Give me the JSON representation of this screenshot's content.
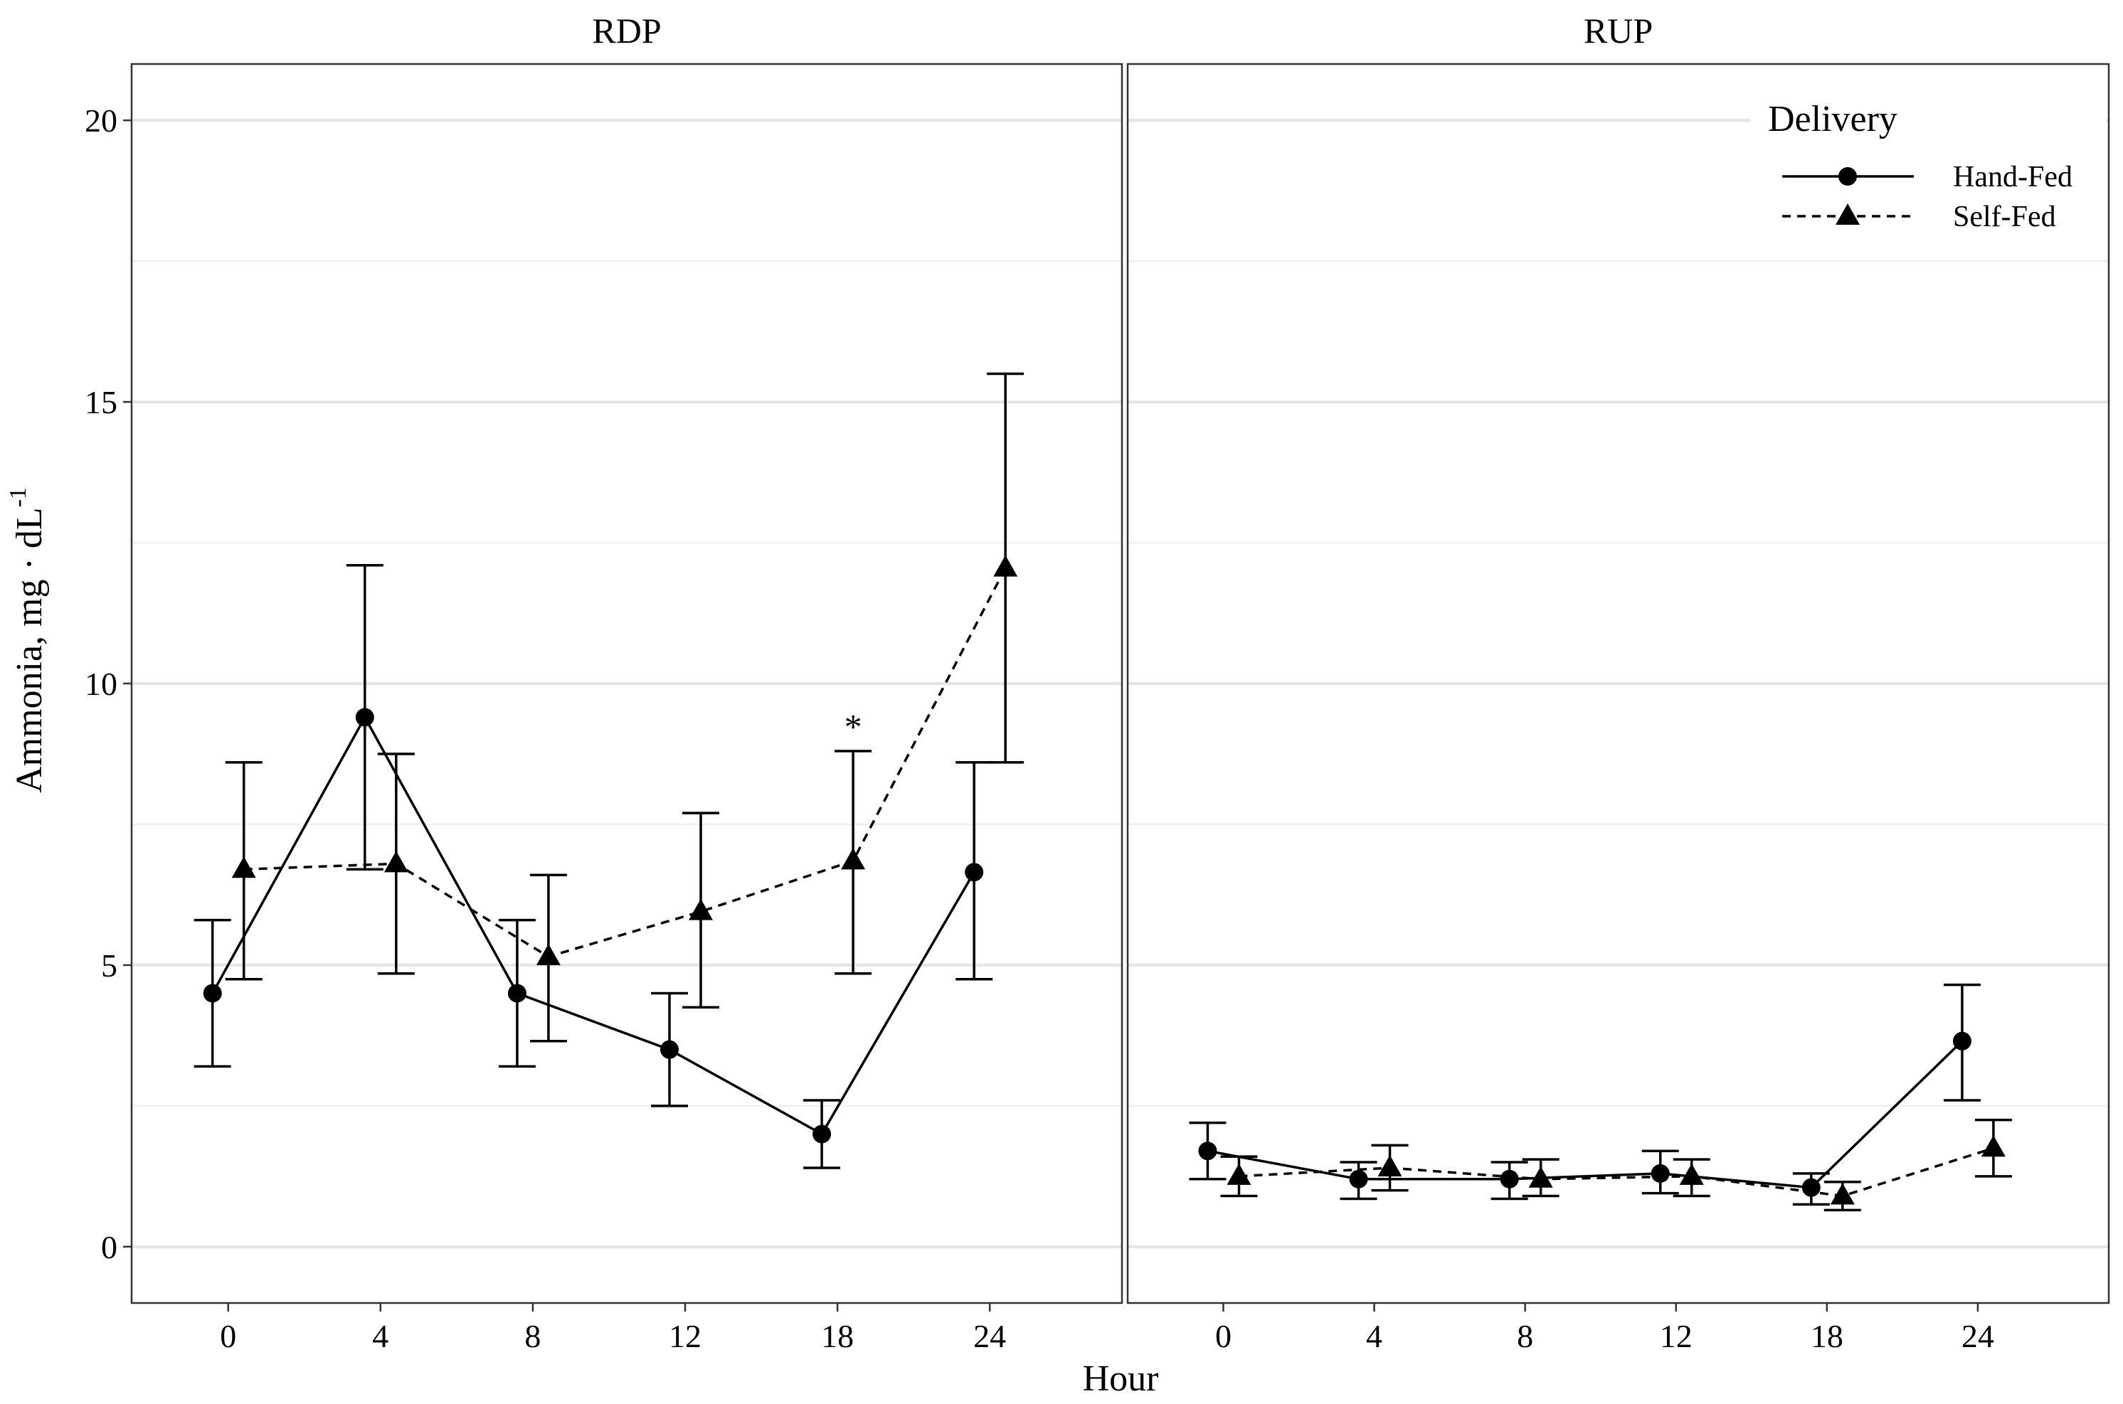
{
  "chart_data": {
    "type": "line",
    "facet_variable": "protein source",
    "xlabel": "Hour",
    "ylabel": "Ammonia, mg · dL",
    "ylabel_superscript": "-1",
    "categories": [
      "0",
      "4",
      "8",
      "12",
      "18",
      "24"
    ],
    "yticks": [
      "0",
      "5",
      "10",
      "15",
      "20"
    ],
    "ylim": [
      -1,
      21
    ],
    "legend": {
      "title": "Delivery",
      "position": "top-right",
      "entries": [
        {
          "name": "Hand-Fed",
          "marker": "circle",
          "line": "solid"
        },
        {
          "name": "Self-Fed",
          "marker": "triangle",
          "line": "dashed"
        }
      ]
    },
    "panels": [
      {
        "title": "RDP",
        "series": [
          {
            "name": "Hand-Fed",
            "values": [
              4.5,
              9.4,
              4.5,
              3.5,
              2.0,
              6.65
            ],
            "lower": [
              3.2,
              6.7,
              3.2,
              2.5,
              1.4,
              4.75
            ],
            "upper": [
              5.8,
              12.1,
              5.8,
              4.5,
              2.6,
              8.6
            ]
          },
          {
            "name": "Self-Fed",
            "values": [
              6.7,
              6.8,
              5.15,
              5.95,
              6.85,
              12.05
            ],
            "lower": [
              4.75,
              4.85,
              3.65,
              4.25,
              4.85,
              8.6
            ],
            "upper": [
              8.6,
              8.75,
              6.6,
              7.7,
              8.8,
              15.5
            ]
          }
        ],
        "annotations": [
          {
            "text": "*",
            "category": "18",
            "value": 9.3
          }
        ]
      },
      {
        "title": "RUP",
        "series": [
          {
            "name": "Hand-Fed",
            "values": [
              1.7,
              1.2,
              1.2,
              1.3,
              1.05,
              3.65
            ],
            "lower": [
              1.2,
              0.85,
              0.85,
              0.95,
              0.75,
              2.6
            ],
            "upper": [
              2.2,
              1.5,
              1.5,
              1.7,
              1.3,
              4.65
            ]
          },
          {
            "name": "Self-Fed",
            "values": [
              1.25,
              1.4,
              1.2,
              1.25,
              0.9,
              1.75
            ],
            "lower": [
              0.9,
              1.0,
              0.9,
              0.9,
              0.65,
              1.25
            ],
            "upper": [
              1.6,
              1.8,
              1.55,
              1.55,
              1.15,
              2.25
            ]
          }
        ],
        "annotations": []
      }
    ]
  }
}
